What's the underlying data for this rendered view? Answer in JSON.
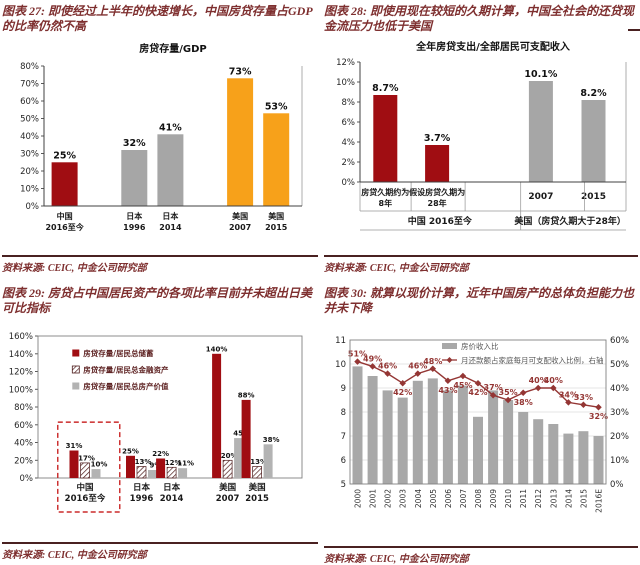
{
  "colors": {
    "title_text": "#7e2f2f",
    "source_text": "#7e2f2f",
    "separator": "#4a2121",
    "dark_red_bar": "#a00d12",
    "gray_bar": "#a6a6a6",
    "orange_bar": "#f7a11a",
    "line_series": "#943634",
    "highlight_box": "#c00000"
  },
  "panels": [
    {
      "title": "图表 27: 即使经过上半年的快速增长，中国房贷存量占GDP 的比率仍然不高",
      "source": "资料来源: CEIC, 中金公司研究部"
    },
    {
      "title": "图表 28: 即使用现在较短的久期计算，中国全社会的还贷现金流压力也低于美国",
      "source": "资料来源: CEIC, 中金公司研究部"
    },
    {
      "title": "图表 29: 房贷占中国居民资产的各项比率目前并未超出日美可比指标",
      "source": "资料来源: CEIC, 中金公司研究部"
    },
    {
      "title": "图表 30: 就算以现价计算，近年中国房产的总体负担能力也并未下降",
      "source": "资料来源: CEIC, 中金公司研究部"
    }
  ],
  "chart_data": [
    {
      "type": "bar",
      "title": "房贷存量/GDP",
      "categories": [
        [
          "中国",
          "2016至今"
        ],
        [
          "日本",
          "1996"
        ],
        [
          "日本",
          "2014"
        ],
        [
          "美国",
          "2007"
        ],
        [
          "美国",
          "2015"
        ]
      ],
      "values": [
        25,
        32,
        41,
        73,
        53
      ],
      "value_labels": [
        "25%",
        "32%",
        "41%",
        "73%",
        "53%"
      ],
      "bar_colors": [
        "#a00d12",
        "#a6a6a6",
        "#a6a6a6",
        "#f7a11a",
        "#f7a11a"
      ],
      "ylim": [
        0,
        80
      ],
      "ytick_step": 10,
      "grid": false,
      "slot_centers": [
        0.08,
        0.35,
        0.49,
        0.76,
        0.9
      ]
    },
    {
      "type": "bar",
      "title": "全年房贷支出/全部居民可支配收入",
      "categories": [
        [
          "房贷久期约为",
          "8年"
        ],
        [
          "假设房贷久期为",
          "28年"
        ],
        [
          "2007"
        ],
        [
          "2015"
        ]
      ],
      "values": [
        8.7,
        3.7,
        10.1,
        8.2
      ],
      "value_labels": [
        "8.7%",
        "3.7%",
        "10.1%",
        "8.2%"
      ],
      "bar_colors": [
        "#a00d12",
        "#a00d12",
        "#a6a6a6",
        "#a6a6a6"
      ],
      "ylim": [
        0,
        12
      ],
      "ytick_step": 2,
      "grid": false,
      "slot_centers": [
        0.095,
        0.29,
        0.68,
        0.878
      ],
      "row1_dividers": [
        0.192,
        0.395,
        0.844
      ],
      "group_divider": 0.604,
      "groups": [
        {
          "label": "中国 2016至今",
          "center": 0.3
        },
        {
          "label": "美国（房贷久期大于28年）",
          "center": 0.79
        }
      ]
    },
    {
      "type": "grouped-bar",
      "categories": [
        [
          "中国",
          "2016至今"
        ],
        [
          "日本",
          "1996"
        ],
        [
          "日本",
          "2014"
        ],
        [
          "美国",
          "2007"
        ],
        [
          "美国",
          "2015"
        ]
      ],
      "series": [
        {
          "name": "房贷存量/居民总储蓄",
          "style": "solid-red",
          "values": [
            31,
            25,
            22,
            140,
            88
          ],
          "labels": [
            "31%",
            "25%",
            "22%",
            "140%",
            "88%"
          ]
        },
        {
          "name": "房贷存量/居民总金融资产",
          "style": "hatched",
          "values": [
            17,
            13,
            12,
            20,
            13
          ],
          "labels": [
            "17%",
            "13%",
            "12%",
            "20%",
            "13%"
          ]
        },
        {
          "name": "房贷存量/居民总房产价值",
          "style": "solid-gray",
          "values": [
            10,
            9,
            11,
            45,
            38
          ],
          "labels": [
            "10%",
            "9%",
            "11%",
            "45%",
            "38%"
          ]
        }
      ],
      "ylim": [
        0,
        160
      ],
      "ytick_step": 20,
      "grid": false,
      "slot_centers": [
        0.178,
        0.392,
        0.506,
        0.718,
        0.83
      ],
      "legend_position": "inside-top-left",
      "highlight_box": {
        "category": 0,
        "x1": 0.075,
        "x2": 0.31,
        "top_value": 63
      }
    },
    {
      "type": "combo",
      "categories": [
        "2000",
        "2001",
        "2002",
        "2003",
        "2004",
        "2005",
        "2006",
        "2007",
        "2008",
        "2009",
        "2010",
        "2011",
        "2012",
        "2013",
        "2014",
        "2015",
        "2016E"
      ],
      "bar_series": {
        "name": "房价收入比",
        "axis": "left",
        "values": [
          9.9,
          9.5,
          8.9,
          8.6,
          9.3,
          9.4,
          8.9,
          9.1,
          7.8,
          8.9,
          8.5,
          8.0,
          7.7,
          7.5,
          7.1,
          7.2,
          7.0
        ]
      },
      "line_series": {
        "name": "月还款额占家庭每月可支配收入比例，右轴",
        "axis": "right",
        "values": [
          51,
          49,
          46,
          42,
          46,
          48,
          43,
          45,
          42,
          37,
          35,
          38,
          40,
          40,
          34,
          33,
          32
        ],
        "labels": [
          "51%",
          "49%",
          "46%",
          "42%",
          "46%",
          "48%",
          "43%",
          "45%",
          "42%",
          "37%",
          "35%",
          "38%",
          "40%",
          "40%",
          "34%",
          "33%",
          "32%"
        ],
        "label_side": [
          "a",
          "a",
          "a",
          "b",
          "a",
          "a",
          "b",
          "b",
          "b",
          "a",
          "a",
          "b",
          "a",
          "a",
          "a",
          "a",
          "b"
        ]
      },
      "left_ylim": [
        5,
        11
      ],
      "left_step": 1,
      "right_ylim": [
        0,
        60
      ],
      "right_step": 10,
      "grid": true,
      "legend_position": "inside-top"
    }
  ]
}
